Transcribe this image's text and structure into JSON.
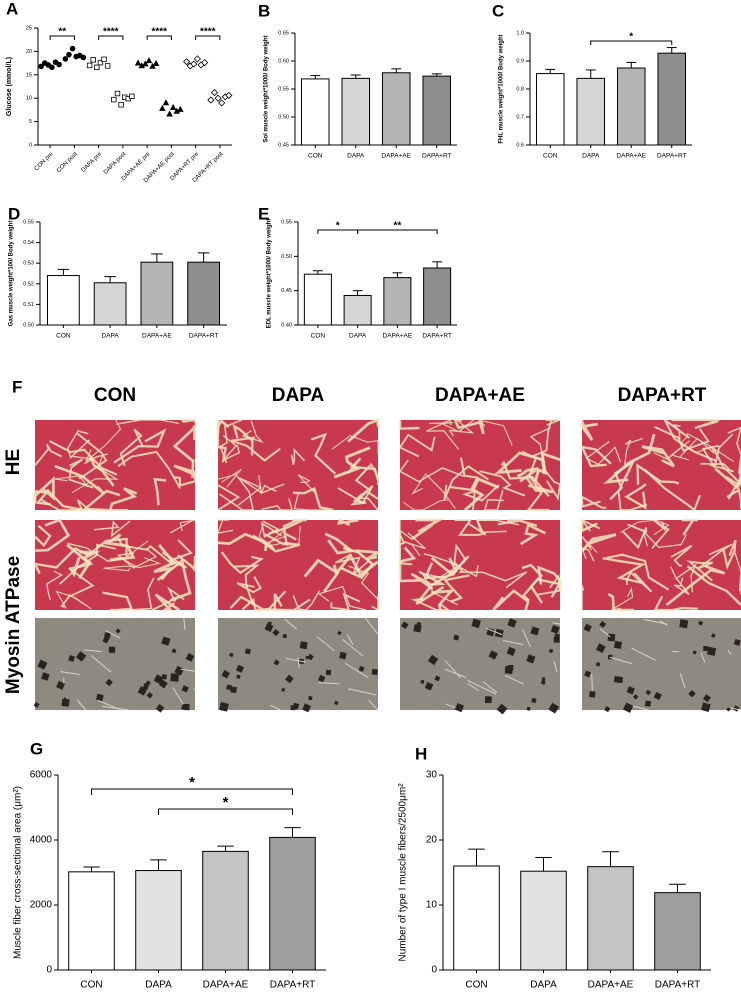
{
  "chart_data": [
    {
      "type": "dot",
      "panel": "A",
      "y_label": "Glucose (mmol/L)",
      "categories": [
        "CON pre",
        "CON post",
        "DAPA pre",
        "DAPA post",
        "DAPA+AE pre",
        "DAPA+AE post",
        "DAPA+RT pre",
        "DAPA+RT post"
      ],
      "markers": [
        "circle-filled",
        "circle-filled",
        "square-open",
        "square-open",
        "triangle-filled",
        "triangle-filled",
        "diamond-open",
        "diamond-open"
      ],
      "values": [
        [
          16.8,
          17.5,
          17.1,
          16.6,
          17.7,
          17.2
        ],
        [
          18.4,
          19.3,
          20.6,
          18.9,
          19.1,
          18.7
        ],
        [
          17.0,
          18.2,
          16.6,
          17.6,
          18.3,
          16.9
        ],
        [
          9.7,
          11.0,
          8.6,
          10.2,
          9.9,
          10.4
        ],
        [
          17.5,
          16.9,
          17.3,
          18.0,
          16.8,
          17.4
        ],
        [
          7.8,
          9.0,
          6.6,
          8.0,
          7.2,
          7.6
        ],
        [
          17.8,
          16.9,
          17.3,
          18.4,
          17.1,
          17.6
        ],
        [
          9.6,
          11.2,
          10.0,
          9.0,
          10.3,
          10.6
        ]
      ],
      "ylim": [
        0,
        25
      ],
      "yticks": [
        0,
        5,
        10,
        15,
        20,
        25
      ],
      "brackets": [
        {
          "label": "**",
          "categories": [
            0,
            1
          ]
        },
        {
          "label": "****",
          "categories": [
            2,
            3
          ]
        },
        {
          "label": "****",
          "categories": [
            4,
            5
          ]
        },
        {
          "label": "****",
          "categories": [
            6,
            7
          ]
        }
      ]
    },
    {
      "type": "bar",
      "panel": "B",
      "y_label": "Sol muscle weight*1000/ Body weight",
      "categories": [
        "CON",
        "DAPA",
        "DAPA+AE",
        "DAPA+RT"
      ],
      "values": [
        0.568,
        0.569,
        0.579,
        0.573
      ],
      "errors": [
        0.006,
        0.006,
        0.007,
        0.004
      ],
      "colors": [
        "#ffffff",
        "#d6d6d6",
        "#b4b4b4",
        "#8e8e8e"
      ],
      "ylim": [
        0.45,
        0.65
      ],
      "yticks": [
        0.45,
        {
          "value": 0.5,
          "label": "0.50"
        },
        0.55,
        {
          "value": 0.6,
          "label": "0.60"
        },
        0.65
      ],
      "brackets": []
    },
    {
      "type": "bar",
      "panel": "C",
      "y_label": "FHL muscle weight*1000/ Body weight",
      "categories": [
        "CON",
        "DAPA",
        "DAPA+AE",
        "DAPA+RT"
      ],
      "values": [
        0.855,
        0.838,
        0.875,
        0.928
      ],
      "errors": [
        0.015,
        0.03,
        0.02,
        0.02
      ],
      "colors": [
        "#ffffff",
        "#d6d6d6",
        "#b4b4b4",
        "#8e8e8e"
      ],
      "ylim": [
        0.6,
        1.0
      ],
      "yticks": [
        0.6,
        0.7,
        0.8,
        0.9,
        {
          "value": 1.0,
          "label": "1.0"
        }
      ],
      "brackets": [
        {
          "label": "*",
          "categories": [
            1,
            3
          ]
        }
      ]
    },
    {
      "type": "bar",
      "panel": "D",
      "y_label": "Gas muscle weight*100/ Body weight",
      "categories": [
        "CON",
        "DAPA",
        "DAPA+AE",
        "DAPA+RT"
      ],
      "values": [
        0.524,
        0.5205,
        0.5305,
        0.5305
      ],
      "errors": [
        0.003,
        0.003,
        0.004,
        0.0045
      ],
      "colors": [
        "#ffffff",
        "#d6d6d6",
        "#b4b4b4",
        "#8e8e8e"
      ],
      "ylim": [
        0.5,
        0.55
      ],
      "yticks": [
        {
          "value": 0.5,
          "label": "0.50"
        },
        0.51,
        0.52,
        0.53,
        0.54,
        0.55
      ],
      "brackets": []
    },
    {
      "type": "bar",
      "panel": "E",
      "y_label": "EDL muscle weight*1000/ Body weight",
      "categories": [
        "CON",
        "DAPA",
        "DAPA+AE",
        "DAPA+RT"
      ],
      "values": [
        0.474,
        0.443,
        0.469,
        0.483
      ],
      "errors": [
        0.005,
        0.007,
        0.007,
        0.009
      ],
      "colors": [
        "#ffffff",
        "#d6d6d6",
        "#b4b4b4",
        "#8e8e8e"
      ],
      "ylim": [
        0.4,
        0.55
      ],
      "yticks": [
        {
          "value": 0.4,
          "label": "0.40"
        },
        0.45,
        {
          "value": 0.5,
          "label": "0.50"
        },
        0.55
      ],
      "brackets": [
        {
          "label": "*",
          "categories": [
            0,
            1
          ]
        },
        {
          "label": "**",
          "categories": [
            1,
            3
          ]
        }
      ]
    },
    {
      "type": "bar",
      "panel": "G",
      "y_label": "Muscle fiber cross-sectional area (μm²)",
      "categories": [
        "CON",
        "DAPA",
        "DAPA+AE",
        "DAPA+RT"
      ],
      "values": [
        3020,
        3060,
        3650,
        4080
      ],
      "errors": [
        150,
        330,
        160,
        300
      ],
      "colors": [
        "#ffffff",
        "#e2e2e2",
        "#c4c4c4",
        "#9e9e9e"
      ],
      "ylim": [
        0,
        6000
      ],
      "yticks": [
        0,
        2000,
        4000,
        6000
      ],
      "brackets": [
        {
          "label": "*",
          "categories": [
            0,
            3
          ]
        },
        {
          "label": "*",
          "categories": [
            1,
            3
          ]
        }
      ]
    },
    {
      "type": "bar",
      "panel": "H",
      "y_label": "Number of type I muscle fibers/2500μm²",
      "categories": [
        "CON",
        "DAPA",
        "DAPA+AE",
        "DAPA+RT"
      ],
      "values": [
        16.0,
        15.2,
        15.9,
        11.9
      ],
      "errors": [
        2.6,
        2.1,
        2.3,
        1.3
      ],
      "colors": [
        "#ffffff",
        "#e2e2e2",
        "#c4c4c4",
        "#9e9e9e"
      ],
      "ylim": [
        0,
        30
      ],
      "yticks": [
        0,
        10,
        20,
        30
      ],
      "brackets": []
    }
  ],
  "histology": {
    "panel": "F",
    "columns": [
      "CON",
      "DAPA",
      "DAPA+AE",
      "DAPA+RT"
    ],
    "rows": [
      "HE",
      "Myosin ATPase"
    ]
  }
}
